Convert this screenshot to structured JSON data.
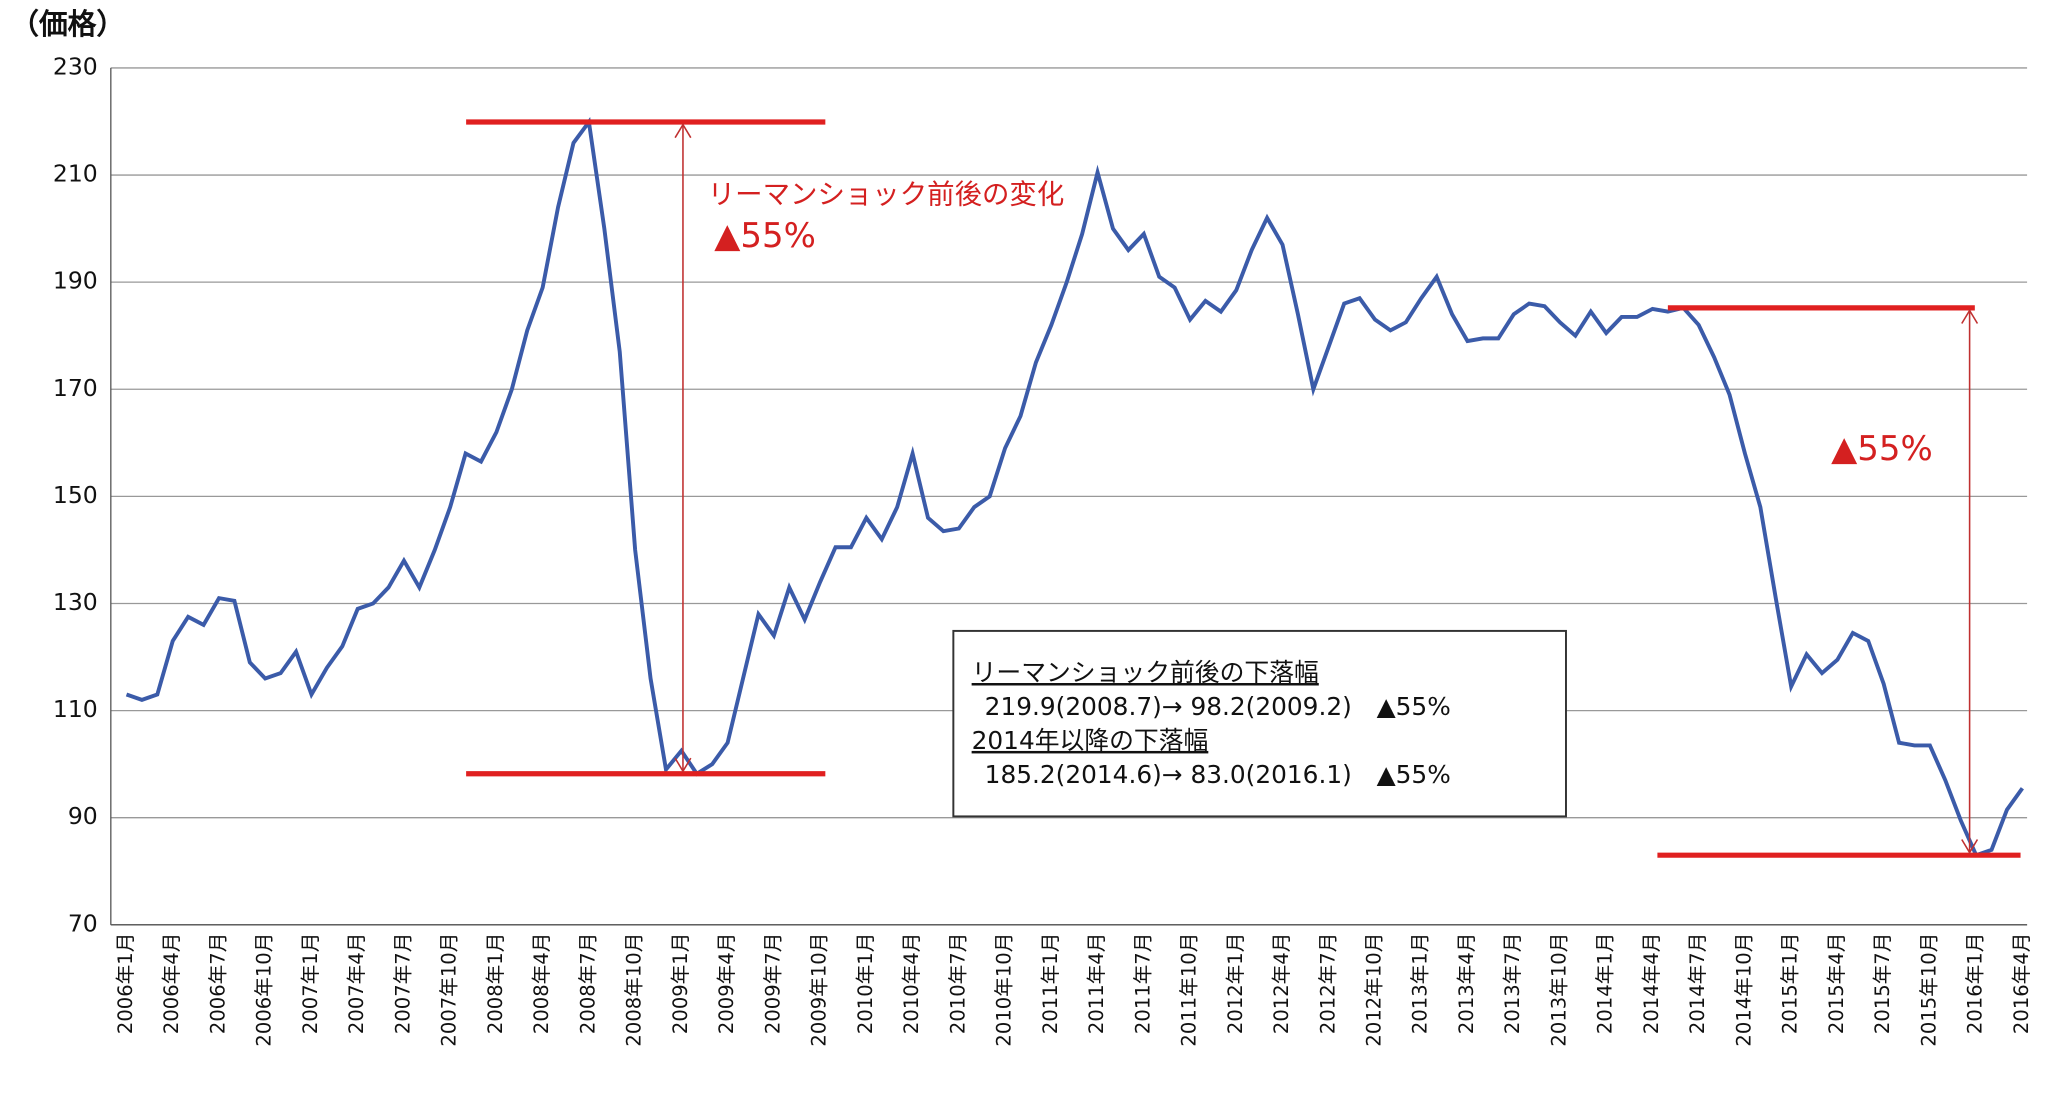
{
  "chart_data": {
    "type": "line",
    "y_label": "（価格）",
    "color": "#3b5ba9",
    "reference_color": "#e02020",
    "categories": [
      "2006年1月",
      null,
      null,
      "2006年4月",
      null,
      null,
      "2006年7月",
      null,
      null,
      "2006年10月",
      null,
      null,
      "2007年1月",
      null,
      null,
      "2007年4月",
      null,
      null,
      "2007年7月",
      null,
      null,
      "2007年10月",
      null,
      null,
      "2008年1月",
      null,
      null,
      "2008年4月",
      null,
      null,
      "2008年7月",
      null,
      null,
      "2008年10月",
      null,
      null,
      "2009年1月",
      null,
      null,
      "2009年4月",
      null,
      null,
      "2009年7月",
      null,
      null,
      "2009年10月",
      null,
      null,
      "2010年1月",
      null,
      null,
      "2010年4月",
      null,
      null,
      "2010年7月",
      null,
      null,
      "2010年10月",
      null,
      null,
      "2011年1月",
      null,
      null,
      "2011年4月",
      null,
      null,
      "2011年7月",
      null,
      null,
      "2011年10月",
      null,
      null,
      "2012年1月",
      null,
      null,
      "2012年4月",
      null,
      null,
      "2012年7月",
      null,
      null,
      "2012年10月",
      null,
      null,
      "2013年1月",
      null,
      null,
      "2013年4月",
      null,
      null,
      "2013年7月",
      null,
      null,
      "2013年10月",
      null,
      null,
      "2014年1月",
      null,
      null,
      "2014年4月",
      null,
      null,
      "2014年7月",
      null,
      null,
      "2014年10月",
      null,
      null,
      "2015年1月",
      null,
      null,
      "2015年4月",
      null,
      null,
      "2015年7月",
      null,
      null,
      "2015年10月",
      null,
      null,
      "2016年1月",
      null,
      null,
      "2016年4月"
    ],
    "values": [
      113,
      112,
      113,
      123,
      127.5,
      126,
      131,
      130.5,
      119,
      116,
      117,
      121,
      113,
      118,
      122,
      129,
      130,
      133,
      138,
      133,
      140,
      148,
      158,
      156.5,
      162,
      170,
      181,
      189,
      204,
      216,
      219.9,
      200,
      177,
      140,
      116,
      99,
      102.5,
      98.2,
      100,
      104,
      116,
      128,
      124,
      133,
      127,
      134,
      140.5,
      140.5,
      146,
      142,
      148,
      158,
      146,
      143.5,
      144,
      148,
      150,
      159,
      165,
      175,
      182,
      190,
      199,
      210.5,
      200,
      196,
      199,
      191,
      189,
      183,
      186.5,
      184.5,
      188.5,
      196,
      202,
      197,
      184,
      170,
      178,
      186,
      187,
      183,
      181,
      182.5,
      187,
      191,
      184,
      179,
      179.5,
      179.5,
      184,
      186,
      185.5,
      182.5,
      180,
      184.5,
      180.5,
      183.5,
      183.5,
      185,
      184.5,
      185.2,
      182,
      176,
      169,
      158,
      148,
      131,
      114.5,
      120.5,
      117,
      119.5,
      124.5,
      123,
      115,
      104,
      103.5,
      103.5,
      97,
      89.5,
      83.0,
      84,
      91.5,
      95.5
    ],
    "ylim": [
      70,
      230
    ],
    "yticks": [
      70,
      90,
      110,
      130,
      150,
      170,
      190,
      210,
      230
    ],
    "grid": true,
    "annotations": [
      {
        "text": "リーマンショック前後の変化",
        "sub": "▲55%",
        "high": 219.9,
        "low": 98.2
      },
      {
        "sub": "▲55%",
        "high": 185.2,
        "low": 83.0
      }
    ],
    "box": {
      "head1": "リーマンショック前後の下落幅",
      "line1": "219.9(2008.7)→ 98.2(2009.2)　▲55%",
      "head2": "2014年以降の下落幅",
      "line2": "185.2(2014.6)→ 83.0(2016.1)　▲55%"
    }
  }
}
